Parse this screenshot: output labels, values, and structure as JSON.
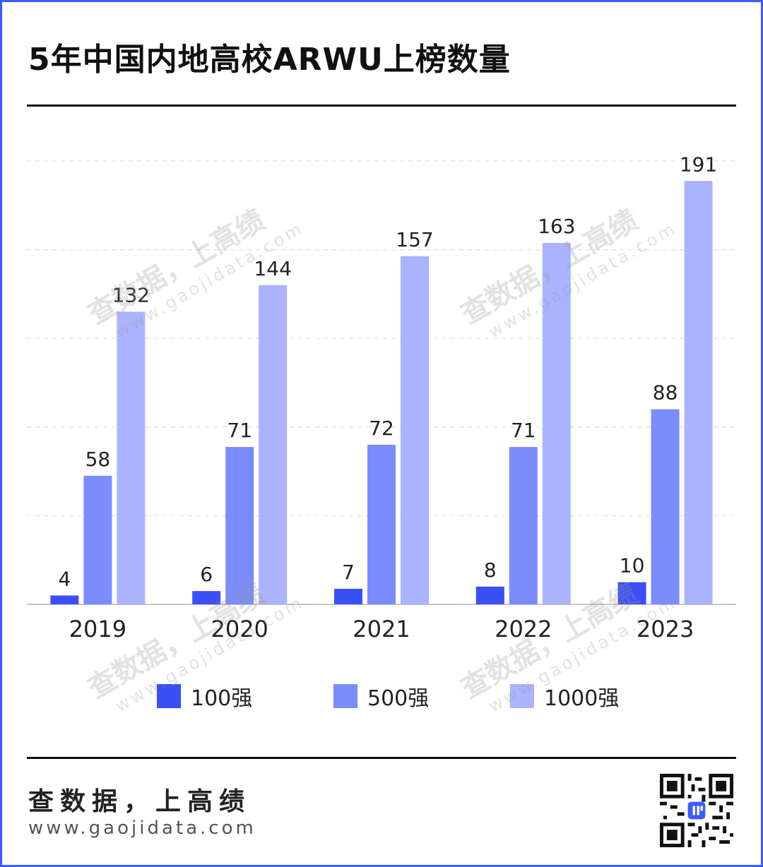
{
  "title": "5年中国内地高校ARWU上榜数量",
  "colors": {
    "frame": "#3b5bfd",
    "top100": "#3b4ff7",
    "top500": "#7b8cfc",
    "top1000": "#aab3fd"
  },
  "chart_data": {
    "type": "bar",
    "categories": [
      "2019",
      "2020",
      "2021",
      "2022",
      "2023"
    ],
    "series": [
      {
        "name": "100强",
        "values": [
          4,
          6,
          7,
          8,
          10
        ]
      },
      {
        "name": "500强",
        "values": [
          58,
          71,
          72,
          71,
          88
        ]
      },
      {
        "name": "1000强",
        "values": [
          132,
          144,
          157,
          163,
          191
        ]
      }
    ],
    "ylim": [
      0,
      200
    ],
    "grid": "dashed horizontal",
    "legend_position": "bottom",
    "data_labels": true
  },
  "legend": [
    {
      "label": "100强",
      "color": "#3b4ff7"
    },
    {
      "label": "500强",
      "color": "#7b8cfc"
    },
    {
      "label": "1000强",
      "color": "#aab3fd"
    }
  ],
  "footer": {
    "slogan": "查数据，上高绩",
    "url": "www.gaojidata.com"
  },
  "watermark": {
    "text": "查数据，上高绩",
    "url": "www.gaojidata.com"
  }
}
